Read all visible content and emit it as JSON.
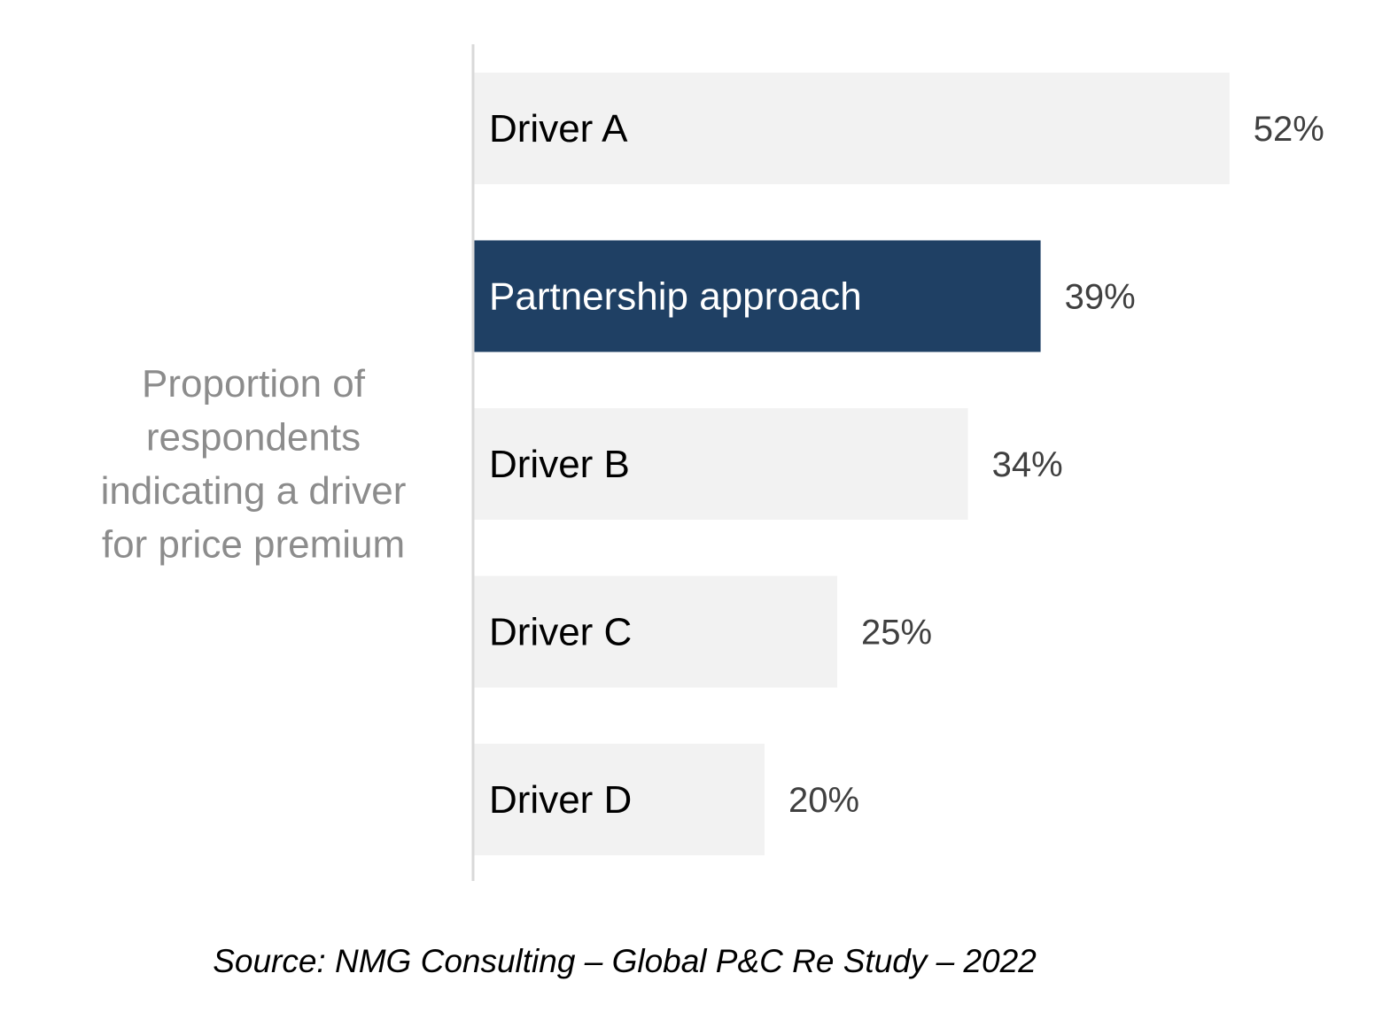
{
  "chart_data": {
    "type": "bar",
    "orientation": "horizontal",
    "ylabel_lines": [
      "Proportion of",
      "respondents",
      "indicating a driver",
      "for price premium"
    ],
    "categories": [
      "Driver A",
      "Partnership approach",
      "Driver B",
      "Driver C",
      "Driver D"
    ],
    "values": [
      52,
      39,
      34,
      25,
      20
    ],
    "value_labels": [
      "52%",
      "39%",
      "34%",
      "25%",
      "20%"
    ],
    "highlight_index": 1,
    "xlim": [
      0,
      100
    ],
    "grid": false,
    "legend": "none",
    "colors": {
      "bar": "#f2f2f2",
      "highlight": "#1f4064",
      "text": "#000000",
      "highlight_text": "#ffffff",
      "axis": "#d9d9d9"
    }
  },
  "source": "Source: NMG Consulting – Global P&C Re Study – 2022"
}
